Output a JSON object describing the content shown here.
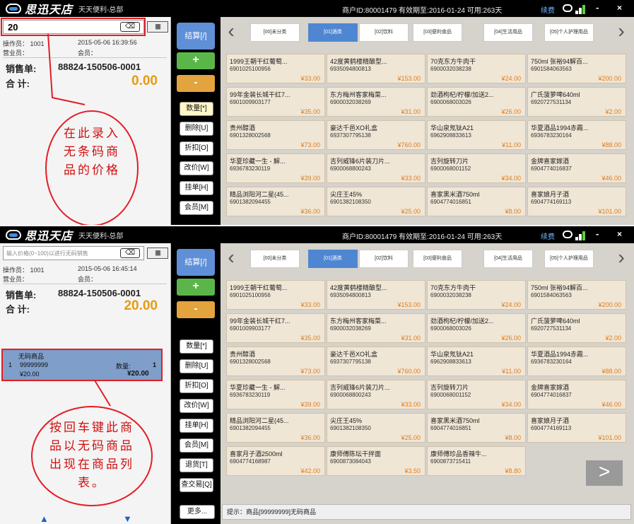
{
  "app": {
    "logo_text": "思迅天店",
    "logo_sub": "天天便利-总部",
    "account_info": "商户ID:80001479  有效期至:2016-01-24  可用:263天",
    "link": "续费",
    "minimize": "-",
    "close": "×"
  },
  "screens": [
    {
      "search_value": "20",
      "search_placeholder": "",
      "clear_label": "⌫",
      "keyboard_label": "|||||||",
      "operator": "操作员： 1001",
      "datetime": "2015-05-06 16:39:56",
      "salesperson": "营业员：",
      "member": "会员：",
      "sale_label": "销售单:",
      "sale_no": "88824-150506-0001",
      "total_label": "合  计:",
      "total_value": "0.00",
      "annotation": "在此录入无条码商品的价格"
    },
    {
      "search_value": "",
      "search_placeholder": "输入价格(0~100)以进行无码销售",
      "clear_label": "⌫",
      "keyboard_label": "|||||||",
      "operator": "操作员： 1001",
      "datetime": "2015-05-06 16:45:14",
      "salesperson": "营业员：",
      "member": "会员：",
      "sale_label": "销售单:",
      "sale_no": "88824-150506-0001",
      "total_label": "合  计:",
      "total_value": "20.00",
      "cart_item": {
        "name": "无码商品",
        "index": "1",
        "code": "99999999",
        "qty_label": "数量:",
        "qty": "1",
        "price": "¥20.00",
        "subtotal": "¥20.00"
      },
      "annotation": "按回车键此商品以无码商品出现在商品列表。",
      "tip": "提示：商品[99999999]无码商品",
      "more_label": "更多..."
    }
  ],
  "function_buttons": {
    "settle": "结算[/]",
    "plus": "+",
    "minus": "-",
    "items": [
      "数量[*]",
      "删除[U]",
      "折扣[O]",
      "改价[W]",
      "挂单[H]",
      "会员[M]",
      "退货[T]",
      "查交易[Q]"
    ]
  },
  "categories": [
    "[00]未分类",
    "[01]酒类",
    "[02]饮料",
    "[03]便利食品",
    "[04]生活用品",
    "[05]个人护理用品"
  ],
  "active_category": 1,
  "products": [
    {
      "name": "1999王朝干红葡萄...",
      "code": "6901025100956",
      "price": "¥33.00"
    },
    {
      "name": "42度黄鹤楼精酿型...",
      "code": "6935094800813",
      "price": "¥153.00"
    },
    {
      "name": "70克东方牛肉干",
      "code": "6900032038238",
      "price": "¥24.00"
    },
    {
      "name": "750ml 张裕94解百...",
      "code": "6901584063563",
      "price": "¥200.00"
    },
    {
      "name": "99年金装长城干红7...",
      "code": "6901009903177",
      "price": "¥35.00"
    },
    {
      "name": "东方梅州客家梅菜...",
      "code": "6900032038269",
      "price": "¥31.00"
    },
    {
      "name": "劲酒枸杞/柠檬/加送2...",
      "code": "6900068003026",
      "price": "¥26.00"
    },
    {
      "name": "广氏菠萝啤640ml",
      "code": "6920727531134",
      "price": "¥2.00"
    },
    {
      "name": "贵州醇酒",
      "code": "6901328002568",
      "price": "¥73.00"
    },
    {
      "name": "豪达千邑XO礼盒",
      "code": "6937307795138",
      "price": "¥760.00"
    },
    {
      "name": "华山泉氖钛A21",
      "code": "6962908833613",
      "price": "¥11.00"
    },
    {
      "name": "华夏酒品1994赤霞...",
      "code": "6936783230164",
      "price": "¥88.00"
    },
    {
      "name": "华夏珍藏一生 - 解...",
      "code": "6936783230119",
      "price": "¥39.00"
    },
    {
      "name": "吉列威锋6片装刀片...",
      "code": "6900068800243",
      "price": "¥33.00"
    },
    {
      "name": "吉列旋转刀片",
      "code": "6900068001152",
      "price": "¥34.00"
    },
    {
      "name": "金牌喜家嫁酒",
      "code": "6904774016837",
      "price": "¥46.00"
    },
    {
      "name": "精品浏阳河二星(45...",
      "code": "6901382094455",
      "price": "¥36.00"
    },
    {
      "name": "尖庄王45%",
      "code": "6901382108350",
      "price": "¥25.00"
    },
    {
      "name": "喜家黑米酒750ml",
      "code": "6904774016851",
      "price": "¥8.00"
    },
    {
      "name": "喜家娘月子酒",
      "code": "6904774169113",
      "price": "¥101.00"
    },
    {
      "name": "喜家月子酒2500ml",
      "code": "6904774168987",
      "price": "¥42.00"
    },
    {
      "name": "康师傅陈坛干拌面",
      "code": "6900873084043",
      "price": "¥3.50"
    },
    {
      "name": "康师傅珍品香辣牛...",
      "code": "6900873715411",
      "price": "¥8.80"
    }
  ],
  "next_page": ">",
  "colors": {
    "accent": "#4f86d2",
    "total": "#e69b14",
    "annotation": "#e51c23"
  }
}
